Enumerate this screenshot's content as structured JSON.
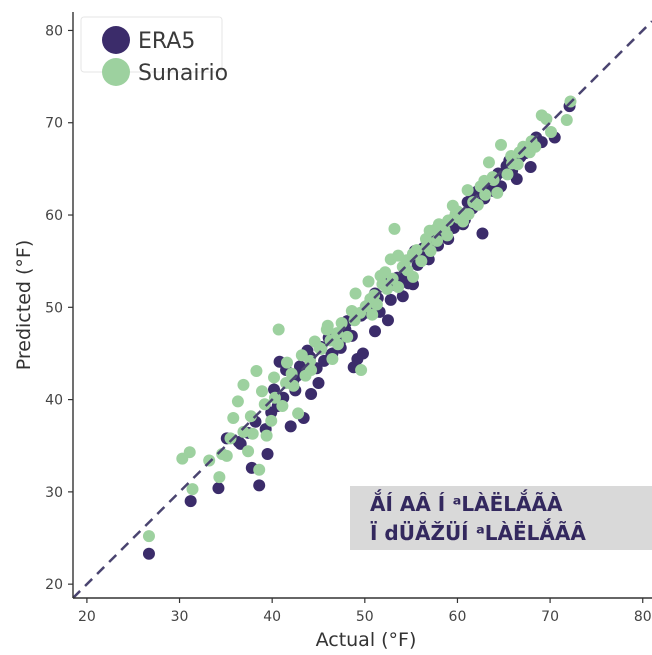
{
  "chart_data": {
    "type": "scatter",
    "xlabel": "Actual (°F)",
    "ylabel": "Predicted (°F)",
    "xlim": [
      18.5,
      81
    ],
    "ylim": [
      18.5,
      82
    ],
    "xticks": [
      20,
      30,
      40,
      50,
      60,
      70,
      80
    ],
    "yticks": [
      20,
      30,
      40,
      50,
      60,
      70,
      80
    ],
    "grid": false,
    "legend_position": "top-left",
    "reference_line": {
      "style": "dashed",
      "color": "#4a4470",
      "slope": 1,
      "intercept": 0
    },
    "annotation": {
      "lines": [
        "ẮÍ AÂ Í ᵃLÀËLẮÃÀ",
        "Ï dÜĂŽÜÍ ᵃLÀËLẮÃÂ"
      ],
      "background": "#d9d9d9"
    },
    "series": [
      {
        "name": "ERA5",
        "color": "#3b2c6a",
        "points": [
          [
            26.7,
            23.3
          ],
          [
            31.2,
            29.0
          ],
          [
            34.2,
            30.4
          ],
          [
            38.6,
            30.7
          ],
          [
            37.8,
            32.6
          ],
          [
            39.5,
            34.1
          ],
          [
            35.1,
            35.8
          ],
          [
            36.6,
            35.2
          ],
          [
            39.3,
            36.8
          ],
          [
            40.6,
            39.3
          ],
          [
            42.0,
            37.1
          ],
          [
            43.4,
            38.0
          ],
          [
            41.2,
            40.2
          ],
          [
            42.5,
            41.0
          ],
          [
            44.2,
            40.6
          ],
          [
            45.0,
            41.8
          ],
          [
            40.8,
            44.1
          ],
          [
            41.5,
            43.2
          ],
          [
            42.7,
            42.6
          ],
          [
            44.8,
            43.4
          ],
          [
            43.8,
            45.3
          ],
          [
            45.6,
            44.2
          ],
          [
            46.5,
            45.0
          ],
          [
            46.1,
            46.7
          ],
          [
            47.4,
            45.6
          ],
          [
            47.9,
            47.6
          ],
          [
            48.8,
            43.5
          ],
          [
            49.2,
            44.4
          ],
          [
            49.8,
            45.0
          ],
          [
            51.1,
            51.5
          ],
          [
            51.6,
            49.5
          ],
          [
            51.1,
            47.4
          ],
          [
            52.5,
            48.6
          ],
          [
            52.8,
            50.8
          ],
          [
            53.3,
            52.4
          ],
          [
            53.9,
            53.1
          ],
          [
            54.1,
            51.2
          ],
          [
            54.6,
            53.8
          ],
          [
            55.2,
            52.5
          ],
          [
            55.7,
            54.6
          ],
          [
            56.3,
            55.4
          ],
          [
            56.9,
            55.2
          ],
          [
            57.2,
            57.3
          ],
          [
            57.9,
            56.7
          ],
          [
            58.4,
            58.1
          ],
          [
            59.0,
            57.4
          ],
          [
            59.6,
            58.6
          ],
          [
            60.2,
            60.1
          ],
          [
            60.8,
            59.5
          ],
          [
            61.1,
            61.4
          ],
          [
            61.6,
            60.7
          ],
          [
            62.2,
            62.6
          ],
          [
            62.7,
            58.0
          ],
          [
            62.9,
            61.8
          ],
          [
            63.3,
            63.3
          ],
          [
            63.9,
            62.6
          ],
          [
            64.4,
            64.5
          ],
          [
            64.7,
            63.1
          ],
          [
            65.3,
            65.3
          ],
          [
            65.9,
            64.8
          ],
          [
            66.4,
            63.9
          ],
          [
            66.8,
            66.3
          ],
          [
            67.3,
            66.7
          ],
          [
            67.9,
            65.2
          ],
          [
            68.5,
            68.4
          ],
          [
            69.1,
            67.9
          ],
          [
            70.5,
            68.4
          ],
          [
            72.1,
            71.8
          ],
          [
            46.9,
            47.1
          ],
          [
            48.1,
            48.5
          ],
          [
            45.3,
            45.7
          ],
          [
            49.6,
            49.1
          ],
          [
            50.3,
            50.2
          ],
          [
            52.1,
            52.6
          ],
          [
            55.4,
            56.1
          ],
          [
            58.6,
            57.8
          ],
          [
            59.2,
            59.4
          ],
          [
            61.6,
            61.9
          ],
          [
            44.1,
            44.6
          ],
          [
            38.2,
            37.6
          ],
          [
            40.2,
            41.1
          ],
          [
            37.4,
            36.4
          ],
          [
            43.0,
            43.6
          ],
          [
            42.3,
            42.1
          ],
          [
            50.0,
            49.4
          ],
          [
            53.5,
            53.2
          ],
          [
            56.3,
            56.4
          ],
          [
            54.7,
            52.6
          ],
          [
            57.6,
            57.4
          ],
          [
            48.6,
            46.9
          ],
          [
            39.9,
            38.6
          ],
          [
            36.4,
            35.4
          ],
          [
            46.4,
            44.9
          ],
          [
            60.6,
            59.0
          ],
          [
            64.1,
            64.1
          ],
          [
            51.4,
            51.0
          ],
          [
            47.3,
            46.2
          ],
          [
            65.6,
            65.9
          ]
        ]
      },
      {
        "name": "Sunairio",
        "color": "#9dd19f",
        "points": [
          [
            26.7,
            25.2
          ],
          [
            30.3,
            33.6
          ],
          [
            31.1,
            34.3
          ],
          [
            31.4,
            30.3
          ],
          [
            33.2,
            33.4
          ],
          [
            34.3,
            31.6
          ],
          [
            35.1,
            33.9
          ],
          [
            35.8,
            38.0
          ],
          [
            36.3,
            39.8
          ],
          [
            36.9,
            41.6
          ],
          [
            37.4,
            34.4
          ],
          [
            37.9,
            36.3
          ],
          [
            38.3,
            43.1
          ],
          [
            38.6,
            32.4
          ],
          [
            38.9,
            40.9
          ],
          [
            39.4,
            36.1
          ],
          [
            39.9,
            37.7
          ],
          [
            40.2,
            42.4
          ],
          [
            40.7,
            47.6
          ],
          [
            41.1,
            39.3
          ],
          [
            41.6,
            44.0
          ],
          [
            42.3,
            41.5
          ],
          [
            42.8,
            38.5
          ],
          [
            43.2,
            44.8
          ],
          [
            43.6,
            42.6
          ],
          [
            44.2,
            43.2
          ],
          [
            44.6,
            46.3
          ],
          [
            45.3,
            45.5
          ],
          [
            45.9,
            47.6
          ],
          [
            46.5,
            44.4
          ],
          [
            47.1,
            46.0
          ],
          [
            47.5,
            48.3
          ],
          [
            48.1,
            46.8
          ],
          [
            48.6,
            49.6
          ],
          [
            49.0,
            51.5
          ],
          [
            49.6,
            43.2
          ],
          [
            50.1,
            50.1
          ],
          [
            50.4,
            52.8
          ],
          [
            50.8,
            49.2
          ],
          [
            51.3,
            50.3
          ],
          [
            51.7,
            53.4
          ],
          [
            52.4,
            52.0
          ],
          [
            52.8,
            55.2
          ],
          [
            53.2,
            58.5
          ],
          [
            53.6,
            52.2
          ],
          [
            54.1,
            54.4
          ],
          [
            54.6,
            54.0
          ],
          [
            55.2,
            53.3
          ],
          [
            55.6,
            56.2
          ],
          [
            56.1,
            55.0
          ],
          [
            56.6,
            57.4
          ],
          [
            57.1,
            56.1
          ],
          [
            57.6,
            58.4
          ],
          [
            58.0,
            59.0
          ],
          [
            58.6,
            58.4
          ],
          [
            59.0,
            59.4
          ],
          [
            59.5,
            61.0
          ],
          [
            60.1,
            59.7
          ],
          [
            60.6,
            59.3
          ],
          [
            61.1,
            62.7
          ],
          [
            61.7,
            61.4
          ],
          [
            62.2,
            61.1
          ],
          [
            62.9,
            63.7
          ],
          [
            63.4,
            65.7
          ],
          [
            63.8,
            64.1
          ],
          [
            64.3,
            62.4
          ],
          [
            64.7,
            67.6
          ],
          [
            65.4,
            64.4
          ],
          [
            65.9,
            65.6
          ],
          [
            66.7,
            66.8
          ],
          [
            67.1,
            67.4
          ],
          [
            67.8,
            66.8
          ],
          [
            68.4,
            67.4
          ],
          [
            69.1,
            70.8
          ],
          [
            69.6,
            70.4
          ],
          [
            70.1,
            69.0
          ],
          [
            71.8,
            70.3
          ],
          [
            72.2,
            72.3
          ],
          [
            34.6,
            34.1
          ],
          [
            35.5,
            35.8
          ],
          [
            36.9,
            36.5
          ],
          [
            37.7,
            38.2
          ],
          [
            41.5,
            41.8
          ],
          [
            42.1,
            42.8
          ],
          [
            44.1,
            44.2
          ],
          [
            45.1,
            45.6
          ],
          [
            46.3,
            46.4
          ],
          [
            47.0,
            47.2
          ],
          [
            48.9,
            48.6
          ],
          [
            49.5,
            49.4
          ],
          [
            51.0,
            51.3
          ],
          [
            51.9,
            52.5
          ],
          [
            53.0,
            53.1
          ],
          [
            54.5,
            55.1
          ],
          [
            55.2,
            55.8
          ],
          [
            56.7,
            56.6
          ],
          [
            57.8,
            57.2
          ],
          [
            58.9,
            57.8
          ],
          [
            60.0,
            60.4
          ],
          [
            61.2,
            60.1
          ],
          [
            62.5,
            63.1
          ],
          [
            63.0,
            62.2
          ],
          [
            63.9,
            63.8
          ],
          [
            65.8,
            66.4
          ],
          [
            66.5,
            65.5
          ],
          [
            68.0,
            68.0
          ],
          [
            40.3,
            40.2
          ],
          [
            39.2,
            39.5
          ],
          [
            46.0,
            48.0
          ],
          [
            50.6,
            50.9
          ],
          [
            52.2,
            53.8
          ],
          [
            53.6,
            55.6
          ],
          [
            57.0,
            58.3
          ],
          [
            59.8,
            60.1
          ]
        ]
      }
    ]
  }
}
